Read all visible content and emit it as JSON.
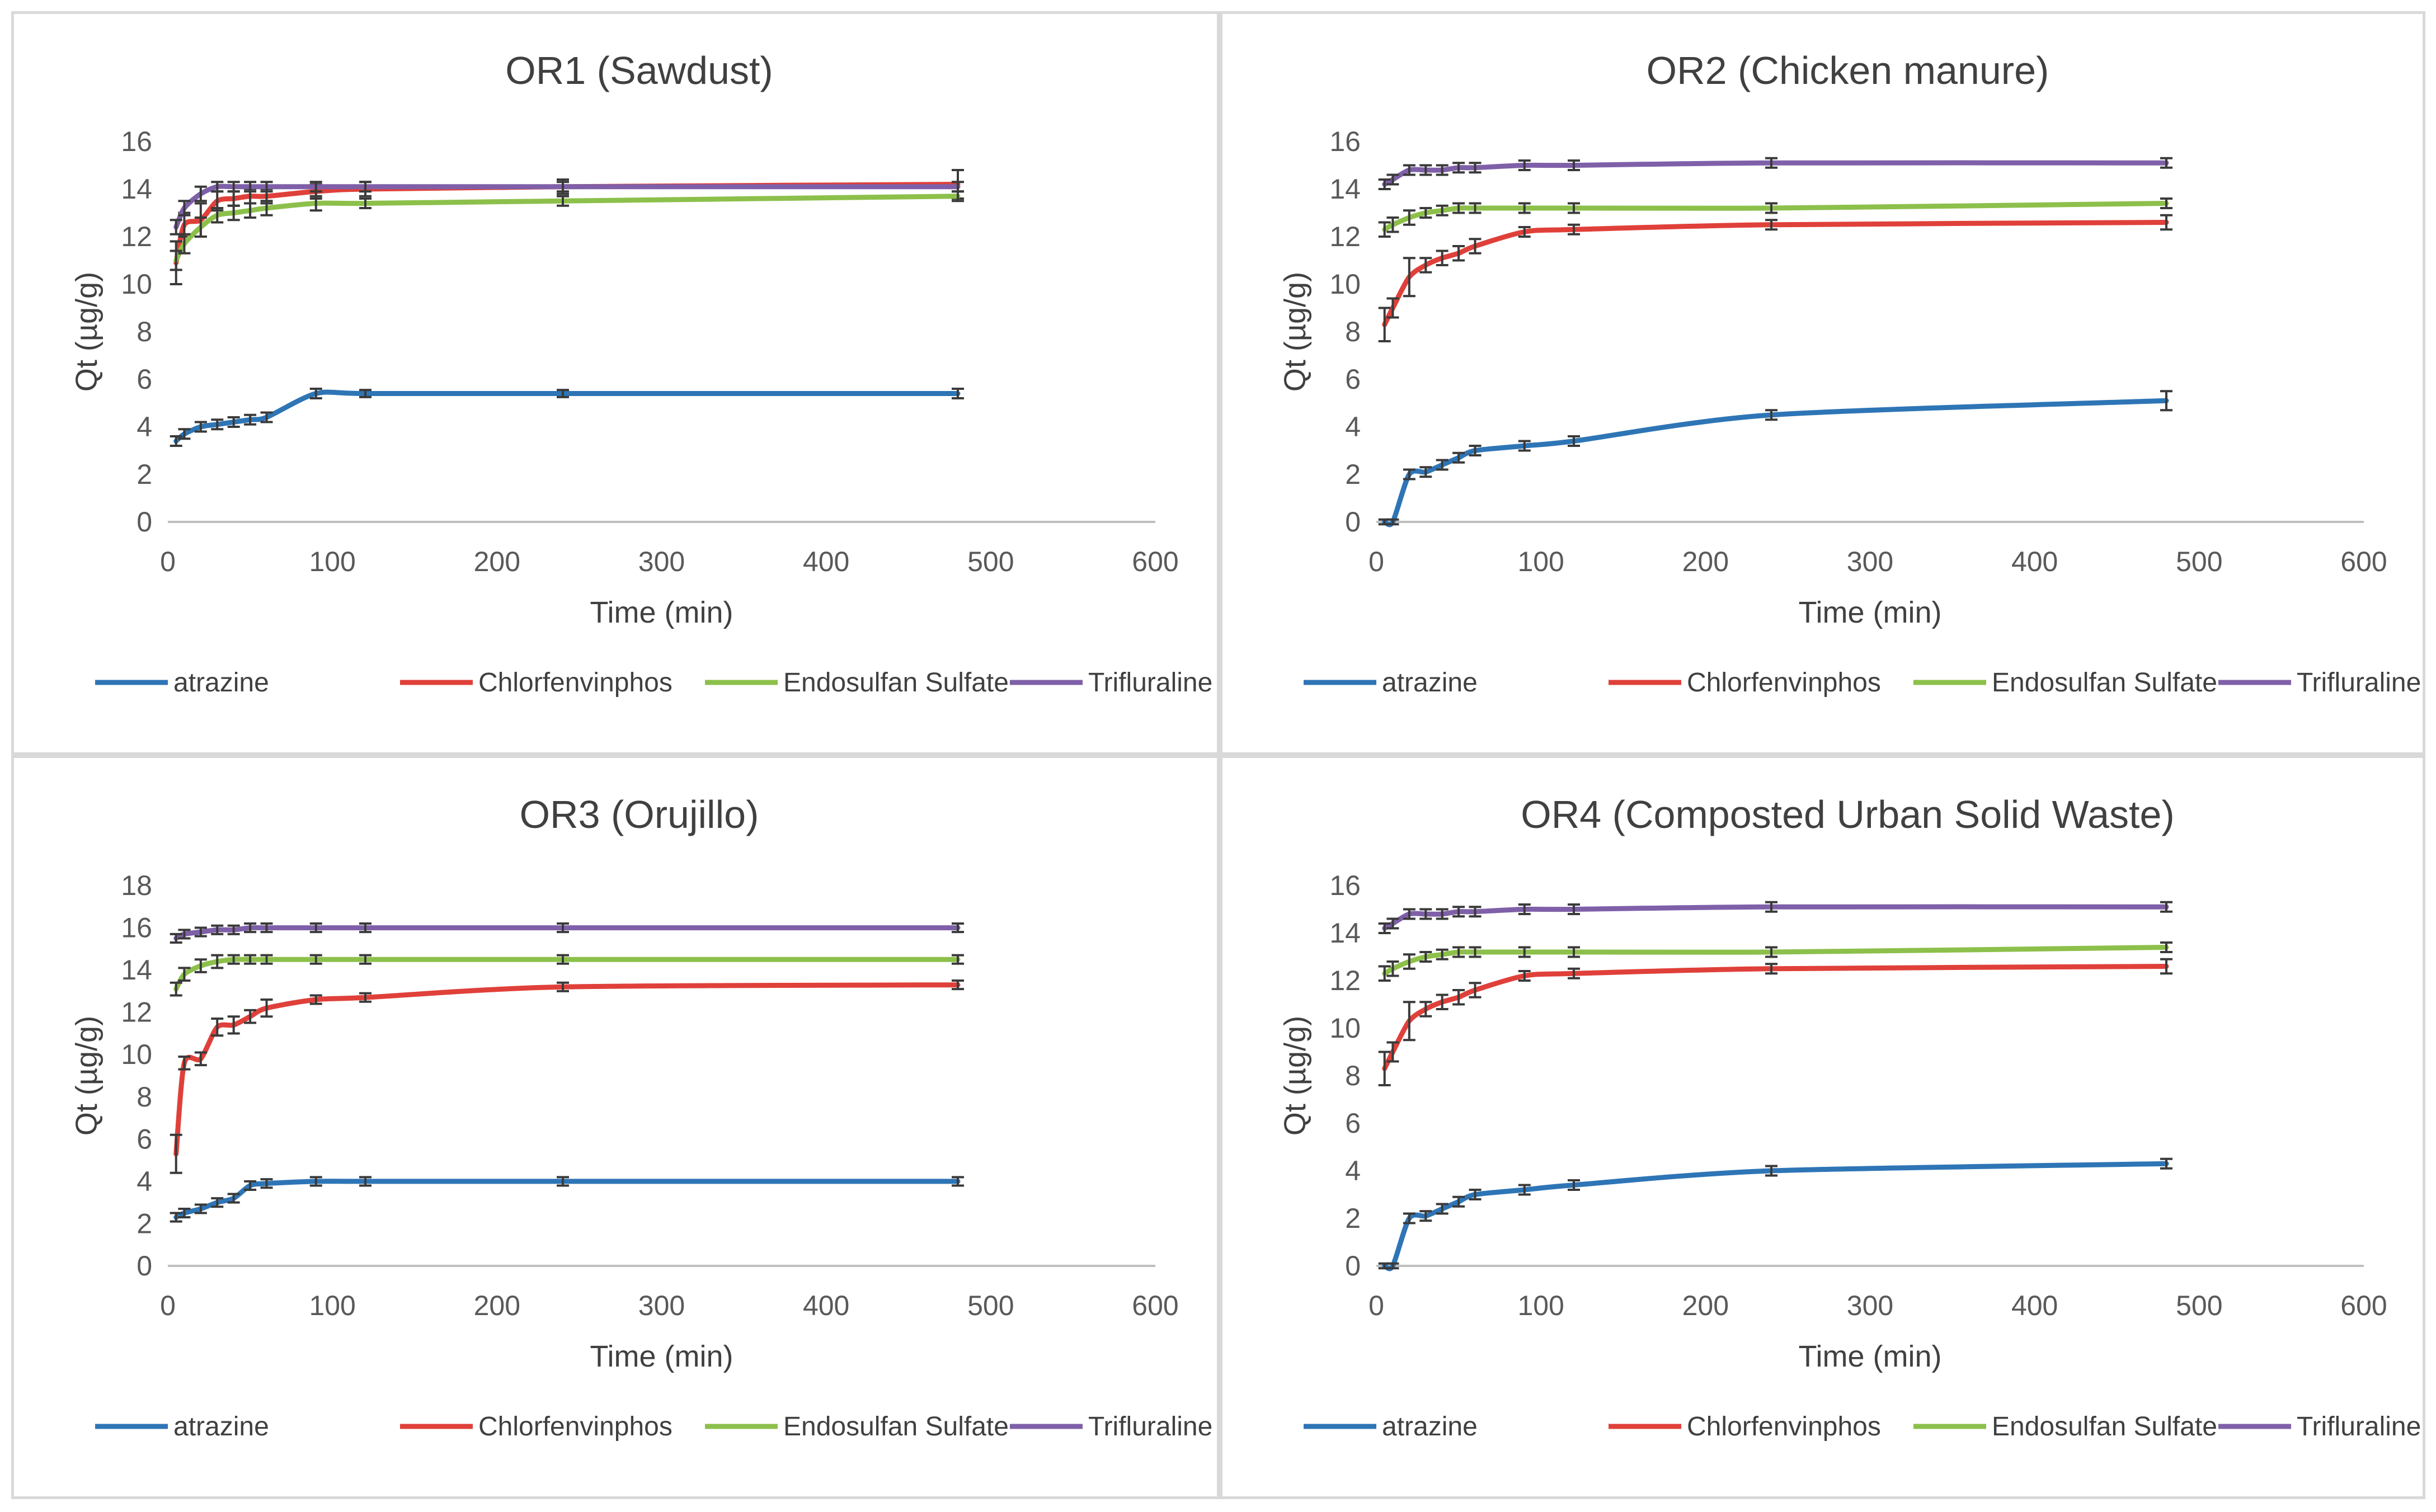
{
  "colors": {
    "atrazine": "#2e75b6",
    "Chlorfenvinphos": "#e0403a",
    "Endosulfan Sulfate": "#8cc04b",
    "Trifluraline": "#7f60a8",
    "error_bar": "#3a3a3a",
    "axis": "#bfbfbf"
  },
  "chart_data": [
    {
      "type": "line",
      "title": "OR1 (Sawdust)",
      "xlabel": "Time (min)",
      "ylabel": "Qt (µg/g)",
      "xlim": [
        0,
        600
      ],
      "ylim": [
        0,
        16
      ],
      "xticks": [
        0,
        100,
        200,
        300,
        400,
        500,
        600
      ],
      "yticks": [
        0,
        2,
        4,
        6,
        8,
        10,
        12,
        14,
        16
      ],
      "legend_position": "bottom",
      "x": [
        5,
        10,
        20,
        30,
        40,
        50,
        60,
        90,
        120,
        240,
        480
      ],
      "series": [
        {
          "name": "atrazine",
          "values": [
            3.4,
            3.7,
            4.0,
            4.1,
            4.2,
            4.3,
            4.4,
            5.4,
            5.4,
            5.4,
            5.4
          ],
          "errors": [
            0.2,
            0.2,
            0.2,
            0.2,
            0.2,
            0.2,
            0.2,
            0.2,
            0.15,
            0.15,
            0.2
          ]
        },
        {
          "name": "Chlorfenvinphos",
          "values": [
            10.9,
            12.5,
            12.7,
            13.5,
            13.6,
            13.7,
            13.7,
            13.9,
            14.0,
            14.1,
            14.2
          ],
          "errors": [
            0.9,
            0.5,
            0.7,
            0.4,
            0.3,
            0.3,
            0.3,
            0.3,
            0.3,
            0.3,
            0.6
          ]
        },
        {
          "name": "Endosulfan Sulfate",
          "values": [
            11.0,
            11.7,
            12.4,
            12.9,
            13.0,
            13.1,
            13.2,
            13.4,
            13.4,
            13.5,
            13.7
          ],
          "errors": [
            0.4,
            0.4,
            0.4,
            0.3,
            0.3,
            0.3,
            0.3,
            0.3,
            0.2,
            0.2,
            0.2
          ]
        },
        {
          "name": "Trifluraline",
          "values": [
            12.4,
            13.2,
            13.8,
            14.1,
            14.1,
            14.1,
            14.1,
            14.1,
            14.1,
            14.1,
            14.1
          ],
          "errors": [
            0.3,
            0.3,
            0.3,
            0.2,
            0.2,
            0.2,
            0.2,
            0.2,
            0.2,
            0.2,
            0.2
          ]
        }
      ]
    },
    {
      "type": "line",
      "title": "OR2 (Chicken manure)",
      "xlabel": "Time (min)",
      "ylabel": "Qt (µg/g)",
      "xlim": [
        0,
        600
      ],
      "ylim": [
        0,
        16
      ],
      "xticks": [
        0,
        100,
        200,
        300,
        400,
        500,
        600
      ],
      "yticks": [
        0,
        2,
        4,
        6,
        8,
        10,
        12,
        14,
        16
      ],
      "legend_position": "bottom",
      "x": [
        5,
        10,
        20,
        30,
        40,
        50,
        60,
        90,
        120,
        240,
        480
      ],
      "series": [
        {
          "name": "atrazine",
          "values": [
            0.0,
            0.0,
            2.0,
            2.1,
            2.4,
            2.7,
            3.0,
            3.2,
            3.4,
            4.5,
            5.1
          ],
          "errors": [
            0.1,
            0.1,
            0.2,
            0.2,
            0.2,
            0.2,
            0.2,
            0.2,
            0.2,
            0.2,
            0.4
          ]
        },
        {
          "name": "Chlorfenvinphos",
          "values": [
            8.3,
            9.0,
            10.3,
            10.8,
            11.1,
            11.3,
            11.6,
            12.2,
            12.3,
            12.5,
            12.6
          ],
          "errors": [
            0.7,
            0.4,
            0.8,
            0.3,
            0.3,
            0.3,
            0.3,
            0.2,
            0.2,
            0.2,
            0.3
          ]
        },
        {
          "name": "Endosulfan Sulfate",
          "values": [
            12.3,
            12.5,
            12.8,
            13.0,
            13.1,
            13.2,
            13.2,
            13.2,
            13.2,
            13.2,
            13.4
          ],
          "errors": [
            0.3,
            0.3,
            0.3,
            0.2,
            0.2,
            0.2,
            0.2,
            0.2,
            0.2,
            0.2,
            0.2
          ]
        },
        {
          "name": "Trifluraline",
          "values": [
            14.2,
            14.4,
            14.8,
            14.8,
            14.8,
            14.9,
            14.9,
            15.0,
            15.0,
            15.1,
            15.1
          ],
          "errors": [
            0.2,
            0.2,
            0.2,
            0.2,
            0.2,
            0.2,
            0.2,
            0.2,
            0.2,
            0.2,
            0.2
          ]
        }
      ]
    },
    {
      "type": "line",
      "title": "OR3 (Orujillo)",
      "xlabel": "Time (min)",
      "ylabel": "Qt (µg/g)",
      "xlim": [
        0,
        600
      ],
      "ylim": [
        0,
        18
      ],
      "xticks": [
        0,
        100,
        200,
        300,
        400,
        500,
        600
      ],
      "yticks": [
        0,
        2,
        4,
        6,
        8,
        10,
        12,
        14,
        16,
        18
      ],
      "legend_position": "bottom",
      "x": [
        5,
        10,
        20,
        30,
        40,
        50,
        60,
        90,
        120,
        240,
        480
      ],
      "series": [
        {
          "name": "atrazine",
          "values": [
            2.3,
            2.5,
            2.7,
            3.0,
            3.2,
            3.8,
            3.9,
            4.0,
            4.0,
            4.0,
            4.0
          ],
          "errors": [
            0.2,
            0.2,
            0.2,
            0.2,
            0.2,
            0.2,
            0.2,
            0.2,
            0.2,
            0.2,
            0.2
          ]
        },
        {
          "name": "Chlorfenvinphos",
          "values": [
            5.3,
            9.6,
            9.8,
            11.3,
            11.4,
            11.8,
            12.2,
            12.6,
            12.7,
            13.2,
            13.3
          ],
          "errors": [
            0.9,
            0.3,
            0.3,
            0.4,
            0.4,
            0.3,
            0.4,
            0.2,
            0.2,
            0.2,
            0.2
          ]
        },
        {
          "name": "Endosulfan Sulfate",
          "values": [
            13.1,
            13.8,
            14.2,
            14.4,
            14.5,
            14.5,
            14.5,
            14.5,
            14.5,
            14.5,
            14.5
          ],
          "errors": [
            0.3,
            0.3,
            0.3,
            0.3,
            0.2,
            0.2,
            0.2,
            0.2,
            0.2,
            0.2,
            0.2
          ]
        },
        {
          "name": "Trifluraline",
          "values": [
            15.5,
            15.7,
            15.8,
            15.9,
            15.9,
            16.0,
            16.0,
            16.0,
            16.0,
            16.0,
            16.0
          ],
          "errors": [
            0.2,
            0.2,
            0.2,
            0.2,
            0.2,
            0.2,
            0.2,
            0.2,
            0.2,
            0.2,
            0.2
          ]
        }
      ]
    },
    {
      "type": "line",
      "title": "OR4 (Composted Urban Solid Waste)",
      "xlabel": "Time (min)",
      "ylabel": "Qt (µg/g)",
      "xlim": [
        0,
        600
      ],
      "ylim": [
        0,
        16
      ],
      "xticks": [
        0,
        100,
        200,
        300,
        400,
        500,
        600
      ],
      "yticks": [
        0,
        2,
        4,
        6,
        8,
        10,
        12,
        14,
        16
      ],
      "legend_position": "bottom",
      "x": [
        5,
        10,
        20,
        30,
        40,
        50,
        60,
        90,
        120,
        240,
        480
      ],
      "series": [
        {
          "name": "atrazine",
          "values": [
            0.0,
            0.0,
            2.0,
            2.1,
            2.4,
            2.7,
            3.0,
            3.2,
            3.4,
            4.0,
            4.3
          ],
          "errors": [
            0.1,
            0.1,
            0.2,
            0.2,
            0.2,
            0.2,
            0.2,
            0.2,
            0.2,
            0.2,
            0.2
          ]
        },
        {
          "name": "Chlorfenvinphos",
          "values": [
            8.3,
            9.0,
            10.3,
            10.8,
            11.1,
            11.3,
            11.6,
            12.2,
            12.3,
            12.5,
            12.6
          ],
          "errors": [
            0.7,
            0.4,
            0.8,
            0.3,
            0.3,
            0.3,
            0.3,
            0.2,
            0.2,
            0.2,
            0.3
          ]
        },
        {
          "name": "Endosulfan Sulfate",
          "values": [
            12.3,
            12.5,
            12.8,
            13.0,
            13.1,
            13.2,
            13.2,
            13.2,
            13.2,
            13.2,
            13.4
          ],
          "errors": [
            0.3,
            0.3,
            0.3,
            0.2,
            0.2,
            0.2,
            0.2,
            0.2,
            0.2,
            0.2,
            0.2
          ]
        },
        {
          "name": "Trifluraline",
          "values": [
            14.2,
            14.4,
            14.8,
            14.8,
            14.8,
            14.9,
            14.9,
            15.0,
            15.0,
            15.1,
            15.1
          ],
          "errors": [
            0.2,
            0.2,
            0.2,
            0.2,
            0.2,
            0.2,
            0.2,
            0.2,
            0.2,
            0.2,
            0.2
          ]
        }
      ]
    }
  ]
}
